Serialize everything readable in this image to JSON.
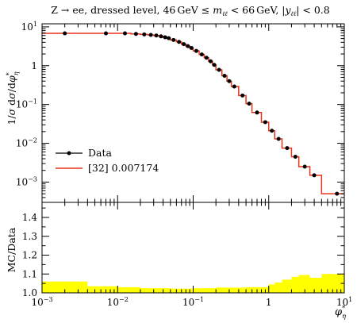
{
  "chart_data": [
    {
      "type": "line",
      "panel": "main",
      "title": "Z → ee, dressed level, 46 GeV ≤ m_ℓℓ < 66 GeV, |y_ℓℓ| < 0.8",
      "title_parts": {
        "process": "Z → ee, dressed level, 46",
        "unit1": "GeV ≤ ",
        "m": "m",
        "ll1": "ℓℓ",
        "lt66": " < 66",
        "unit2": "GeV, |",
        "y": "y",
        "ll2": "ℓℓ",
        "tail": "| < 0.8"
      },
      "ylabel": "1/σ dσ/dφ*η",
      "ylabel_parts": {
        "lead": "1/",
        "sigma": "σ",
        "d": " d",
        "sigma2": "σ",
        "slash": "/d",
        "phi": "φ",
        "star": "*",
        "eta": "η"
      },
      "yscale": "log",
      "ylim": [
        0.0003,
        12
      ],
      "xlim": [
        0.001,
        10
      ],
      "xscale": "log",
      "y_ticks": [
        {
          "value": 10,
          "label": "10",
          "exp": "1"
        },
        {
          "value": 1,
          "label": "1",
          "exp": ""
        },
        {
          "value": 0.1,
          "label": "10",
          "exp": "−1"
        },
        {
          "value": 0.01,
          "label": "10",
          "exp": "−2"
        },
        {
          "value": 0.001,
          "label": "10",
          "exp": "−3"
        }
      ],
      "legend": {
        "position": "bottom-left",
        "entries": [
          "Data",
          "[32] 0.007174"
        ]
      },
      "colors": {
        "data": "#000000",
        "mc": "#e8331a",
        "band": "#ffff00"
      },
      "series": [
        {
          "name": "Data",
          "style": "points",
          "x": [
            0.002,
            0.007,
            0.0125,
            0.0175,
            0.0225,
            0.0275,
            0.0325,
            0.0375,
            0.0425,
            0.0475,
            0.055,
            0.065,
            0.075,
            0.085,
            0.095,
            0.11,
            0.13,
            0.15,
            0.17,
            0.19,
            0.22,
            0.26,
            0.3,
            0.35,
            0.45,
            0.55,
            0.7,
            0.9,
            1.1,
            1.35,
            1.75,
            2.25,
            3.0,
            4.0,
            8.0
          ],
          "y": [
            6.8,
            6.8,
            6.8,
            6.6,
            6.4,
            6.2,
            6.0,
            5.7,
            5.4,
            5.1,
            4.6,
            4.1,
            3.6,
            3.2,
            2.85,
            2.4,
            1.95,
            1.6,
            1.3,
            1.05,
            0.78,
            0.55,
            0.4,
            0.29,
            0.17,
            0.105,
            0.062,
            0.035,
            0.021,
            0.013,
            0.0075,
            0.0045,
            0.0025,
            0.0015,
            0.0005
          ]
        },
        {
          "name": "[32] 0.007174",
          "style": "step",
          "edges": [
            0.001,
            0.004,
            0.01,
            0.015,
            0.02,
            0.025,
            0.03,
            0.035,
            0.04,
            0.045,
            0.05,
            0.06,
            0.07,
            0.08,
            0.09,
            0.1,
            0.12,
            0.14,
            0.16,
            0.18,
            0.2,
            0.24,
            0.28,
            0.32,
            0.4,
            0.5,
            0.6,
            0.8,
            1.0,
            1.2,
            1.5,
            2.0,
            2.5,
            3.5,
            5.0,
            10.0
          ],
          "y": [
            6.8,
            6.8,
            6.8,
            6.6,
            6.4,
            6.2,
            6.0,
            5.7,
            5.4,
            5.1,
            4.6,
            4.1,
            3.6,
            3.2,
            2.85,
            2.4,
            1.95,
            1.6,
            1.3,
            1.05,
            0.78,
            0.55,
            0.4,
            0.29,
            0.17,
            0.105,
            0.062,
            0.035,
            0.021,
            0.013,
            0.0075,
            0.0045,
            0.0025,
            0.0015,
            0.0005
          ]
        }
      ]
    },
    {
      "type": "area",
      "panel": "ratio",
      "ylabel": "MC/Data",
      "xlabel": "φ*η",
      "xlabel_parts": {
        "phi": "φ",
        "star": "*",
        "eta": "η"
      },
      "xscale": "log",
      "xlim": [
        0.001,
        10
      ],
      "ylim": [
        1.0,
        1.48
      ],
      "y_ticks": [
        {
          "value": 1.0,
          "label": "1.0"
        },
        {
          "value": 1.1,
          "label": "1.1"
        },
        {
          "value": 1.2,
          "label": "1.2"
        },
        {
          "value": 1.3,
          "label": "1.3"
        },
        {
          "value": 1.4,
          "label": "1.4"
        }
      ],
      "x_ticks": [
        {
          "value": 0.001,
          "label": "10",
          "exp": "−3"
        },
        {
          "value": 0.01,
          "label": "10",
          "exp": "−2"
        },
        {
          "value": 0.1,
          "label": "10",
          "exp": "−1"
        },
        {
          "value": 1,
          "label": "1",
          "exp": ""
        },
        {
          "value": 10,
          "label": "10",
          "exp": "1"
        }
      ],
      "series": [
        {
          "name": "",
          "edges": [
            0.001,
            0.004,
            0.01,
            0.02,
            0.05,
            0.1,
            0.2,
            0.5,
            1.0,
            1.2,
            1.5,
            2.0,
            2.5,
            3.5,
            5.0,
            10.0
          ],
          "upper": [
            1.06,
            1.035,
            1.03,
            1.025,
            1.022,
            1.025,
            1.028,
            1.03,
            1.045,
            1.055,
            1.07,
            1.085,
            1.095,
            1.08,
            1.1
          ]
        }
      ]
    }
  ]
}
